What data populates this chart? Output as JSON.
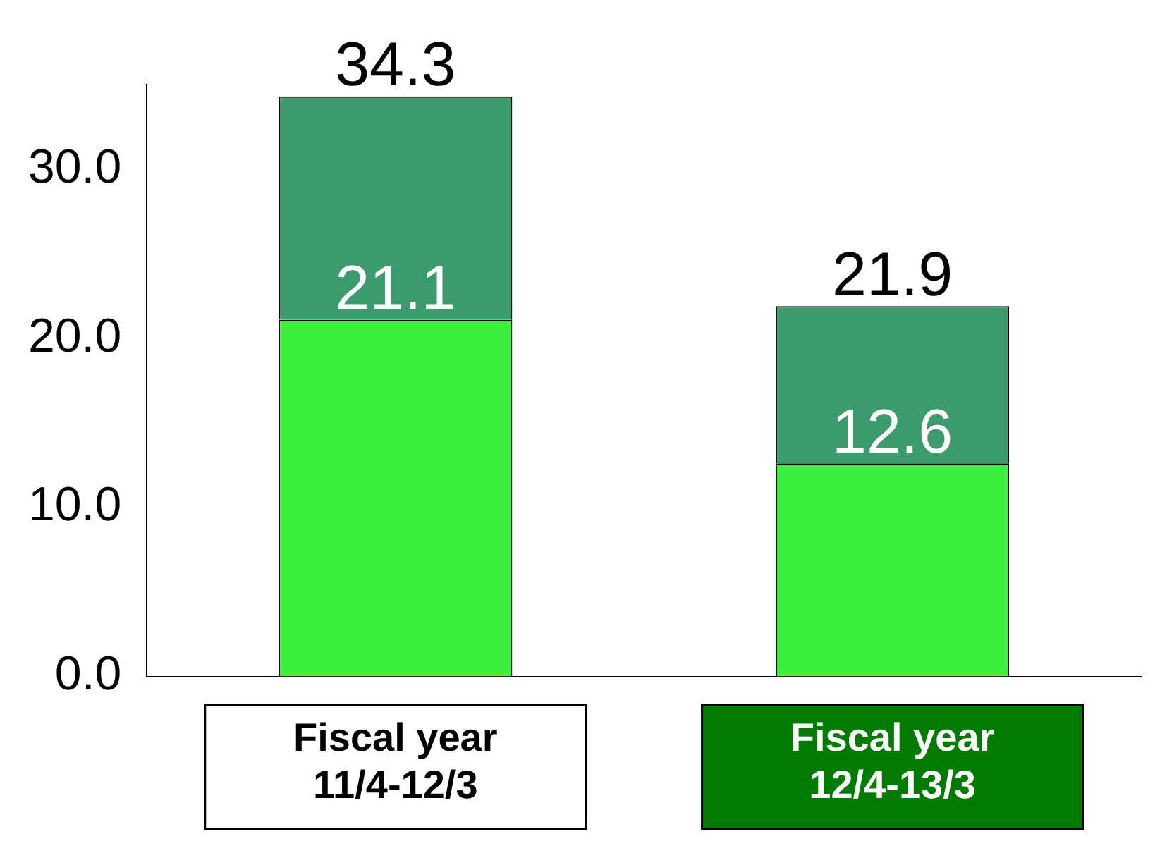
{
  "chart_data": {
    "type": "bar",
    "stacked": true,
    "categories": [
      "Fiscal year\n11/4-12/3",
      "Fiscal year\n12/4-13/3"
    ],
    "series": [
      {
        "color": "#3cf03c",
        "values": [
          21.1,
          12.6
        ],
        "value_labels": [
          "21.1",
          "12.6"
        ]
      },
      {
        "color": "#3d9a6c",
        "values": [
          13.2,
          9.3
        ]
      }
    ],
    "totals": [
      "34.3",
      "21.9"
    ],
    "ylim": [
      0,
      35
    ],
    "yticks": [
      {
        "value": 0,
        "label": "0.0"
      },
      {
        "value": 10,
        "label": "10.0"
      },
      {
        "value": 20,
        "label": "20.0"
      },
      {
        "value": 30,
        "label": "30.0"
      }
    ],
    "grid": false,
    "legend": false
  }
}
